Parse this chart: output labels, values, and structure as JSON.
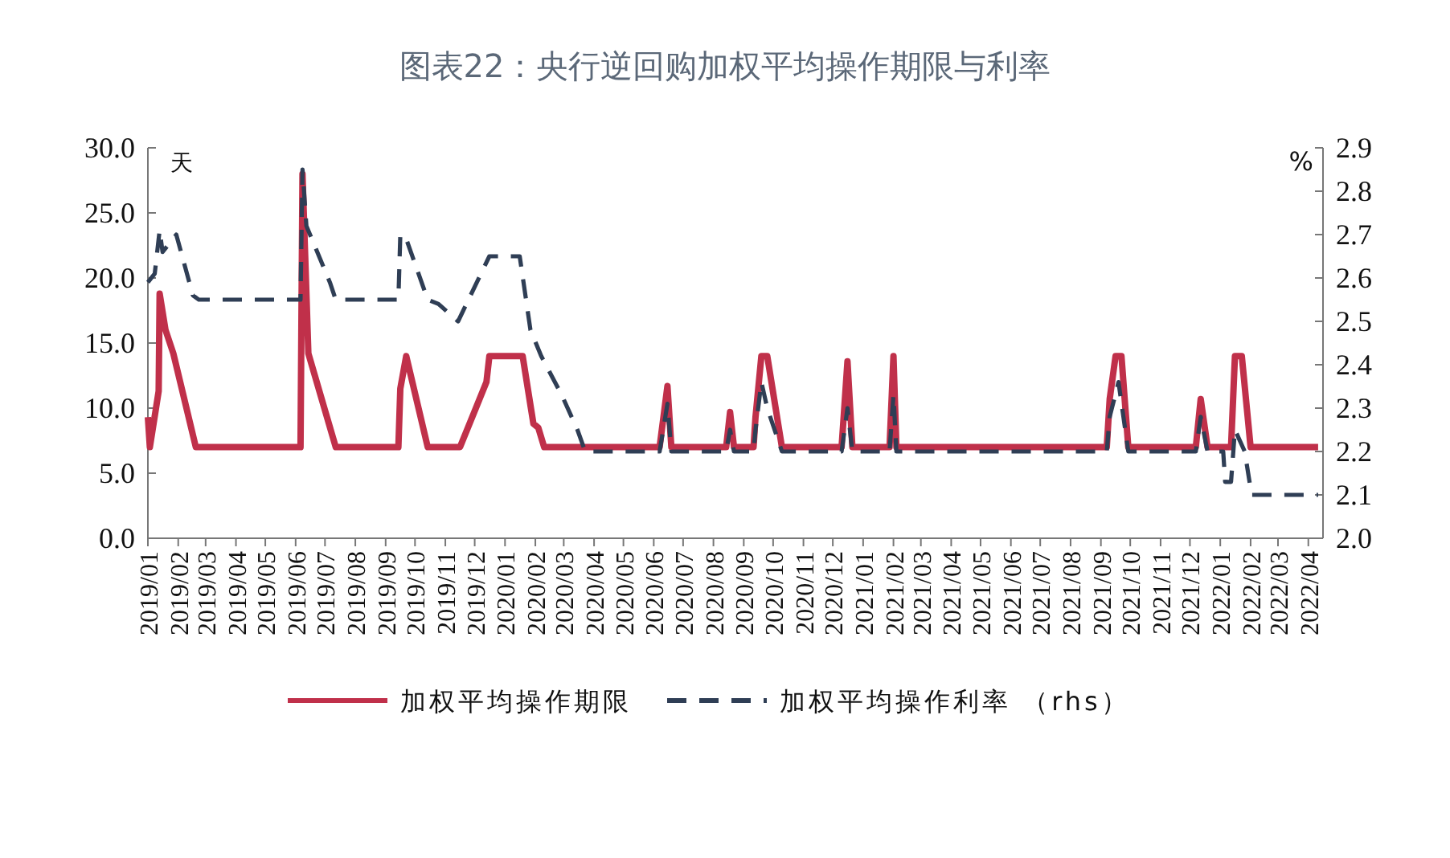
{
  "chart_data": {
    "type": "line",
    "title": "图表22：央行逆回购加权平均操作期限与利率",
    "ylabel": "天",
    "y2label": "%",
    "xlim": [
      "2019-01-01",
      "2022-04-16"
    ],
    "xticks": [
      {
        "value": "2019-01-01",
        "label": "2019/01"
      },
      {
        "value": "2019-02-01",
        "label": "2019/02"
      },
      {
        "value": "2019-03-01",
        "label": "2019/03"
      },
      {
        "value": "2019-04-01",
        "label": "2019/04"
      },
      {
        "value": "2019-05-01",
        "label": "2019/05"
      },
      {
        "value": "2019-06-01",
        "label": "2019/06"
      },
      {
        "value": "2019-07-01",
        "label": "2019/07"
      },
      {
        "value": "2019-08-01",
        "label": "2019/08"
      },
      {
        "value": "2019-09-01",
        "label": "2019/09"
      },
      {
        "value": "2019-10-01",
        "label": "2019/10"
      },
      {
        "value": "2019-11-01",
        "label": "2019/11"
      },
      {
        "value": "2019-12-01",
        "label": "2019/12"
      },
      {
        "value": "2020-01-01",
        "label": "2020/01"
      },
      {
        "value": "2020-02-01",
        "label": "2020/02"
      },
      {
        "value": "2020-03-01",
        "label": "2020/03"
      },
      {
        "value": "2020-04-01",
        "label": "2020/04"
      },
      {
        "value": "2020-05-01",
        "label": "2020/05"
      },
      {
        "value": "2020-06-01",
        "label": "2020/06"
      },
      {
        "value": "2020-07-01",
        "label": "2020/07"
      },
      {
        "value": "2020-08-01",
        "label": "2020/08"
      },
      {
        "value": "2020-09-01",
        "label": "2020/09"
      },
      {
        "value": "2020-10-01",
        "label": "2020/10"
      },
      {
        "value": "2020-11-01",
        "label": "2020/11"
      },
      {
        "value": "2020-12-01",
        "label": "2020/12"
      },
      {
        "value": "2021-01-01",
        "label": "2021/01"
      },
      {
        "value": "2021-02-01",
        "label": "2021/02"
      },
      {
        "value": "2021-03-01",
        "label": "2021/03"
      },
      {
        "value": "2021-04-01",
        "label": "2021/04"
      },
      {
        "value": "2021-05-01",
        "label": "2021/05"
      },
      {
        "value": "2021-06-01",
        "label": "2021/06"
      },
      {
        "value": "2021-07-01",
        "label": "2021/07"
      },
      {
        "value": "2021-08-01",
        "label": "2021/08"
      },
      {
        "value": "2021-09-01",
        "label": "2021/09"
      },
      {
        "value": "2021-10-01",
        "label": "2021/10"
      },
      {
        "value": "2021-11-01",
        "label": "2021/11"
      },
      {
        "value": "2021-12-01",
        "label": "2021/12"
      },
      {
        "value": "2022-01-01",
        "label": "2022/01"
      },
      {
        "value": "2022-02-01",
        "label": "2022/02"
      },
      {
        "value": "2022-03-01",
        "label": "2022/03"
      },
      {
        "value": "2022-04-01",
        "label": "2022/04"
      }
    ],
    "ylim": [
      0,
      30
    ],
    "yticks": [
      {
        "value": 0,
        "label": "0.0"
      },
      {
        "value": 5,
        "label": "5.0"
      },
      {
        "value": 10,
        "label": "10.0"
      },
      {
        "value": 15,
        "label": "15.0"
      },
      {
        "value": 20,
        "label": "20.0"
      },
      {
        "value": 25,
        "label": "25.0"
      },
      {
        "value": 30,
        "label": "30.0"
      }
    ],
    "y2lim": [
      2.0,
      2.9
    ],
    "y2ticks": [
      {
        "value": 2.0,
        "label": "2.0"
      },
      {
        "value": 2.1,
        "label": "2.1"
      },
      {
        "value": 2.2,
        "label": "2.2"
      },
      {
        "value": 2.3,
        "label": "2.3"
      },
      {
        "value": 2.4,
        "label": "2.4"
      },
      {
        "value": 2.5,
        "label": "2.5"
      },
      {
        "value": 2.6,
        "label": "2.6"
      },
      {
        "value": 2.7,
        "label": "2.7"
      },
      {
        "value": 2.8,
        "label": "2.8"
      },
      {
        "value": 2.9,
        "label": "2.9"
      }
    ],
    "legend": "bottom",
    "series": [
      {
        "name": "加权平均操作期限",
        "color": "#c0304a",
        "line_style": "solid",
        "x": [
          "2019-01-01",
          "2019-01-03",
          "2019-01-12",
          "2019-01-13",
          "2019-01-19",
          "2019-01-27",
          "2019-02-19",
          "2019-06-06",
          "2019-06-08",
          "2019-06-14",
          "2019-07-12",
          "2019-09-14",
          "2019-09-16",
          "2019-09-22",
          "2019-10-14",
          "2019-11-16",
          "2019-12-13",
          "2019-12-16",
          "2020-01-19",
          "2020-01-30",
          "2020-02-04",
          "2020-02-10",
          "2020-06-07",
          "2020-06-15",
          "2020-06-19",
          "2020-08-14",
          "2020-08-18",
          "2020-08-22",
          "2020-09-11",
          "2020-09-13",
          "2020-09-19",
          "2020-09-25",
          "2020-10-10",
          "2020-12-10",
          "2020-12-16",
          "2020-12-21",
          "2021-01-28",
          "2021-02-01",
          "2021-02-04",
          "2021-09-07",
          "2021-09-10",
          "2021-09-16",
          "2021-09-22",
          "2021-09-29",
          "2021-12-07",
          "2021-12-12",
          "2021-12-19",
          "2022-01-12",
          "2022-01-16",
          "2022-01-23",
          "2022-02-01",
          "2022-04-11"
        ],
        "values": [
          9.3,
          7.0,
          11.3,
          18.8,
          16.0,
          14.2,
          7.0,
          7.0,
          28.0,
          14.2,
          7.0,
          7.0,
          11.5,
          14.0,
          7.0,
          7.0,
          12.0,
          14.0,
          14.0,
          8.8,
          8.5,
          7.0,
          7.0,
          11.7,
          7.0,
          7.0,
          9.7,
          7.0,
          7.0,
          9.3,
          14.0,
          14.0,
          7.0,
          7.0,
          13.6,
          7.0,
          7.0,
          14.0,
          7.0,
          7.0,
          10.7,
          14.0,
          14.0,
          7.0,
          7.0,
          10.7,
          7.0,
          7.0,
          14.0,
          14.0,
          7.0,
          7.0
        ]
      },
      {
        "name": "加权平均操作利率 （rhs）",
        "color": "#2f3e55",
        "line_style": "dashed",
        "axis": "y2",
        "x": [
          "2019-01-01",
          "2019-01-08",
          "2019-01-13",
          "2019-01-16",
          "2019-01-30",
          "2019-02-16",
          "2019-02-22",
          "2019-06-06",
          "2019-06-08",
          "2019-06-12",
          "2019-07-06",
          "2019-07-12",
          "2019-09-14",
          "2019-09-16",
          "2019-09-22",
          "2019-10-14",
          "2019-10-25",
          "2019-11-14",
          "2019-12-16",
          "2020-01-16",
          "2020-01-27",
          "2020-02-07",
          "2020-02-28",
          "2020-03-15",
          "2020-03-23",
          "2020-06-07",
          "2020-06-15",
          "2020-06-19",
          "2020-08-14",
          "2020-08-18",
          "2020-08-22",
          "2020-09-11",
          "2020-09-13",
          "2020-09-19",
          "2020-09-25",
          "2020-10-10",
          "2020-12-10",
          "2020-12-16",
          "2020-12-21",
          "2021-01-28",
          "2021-02-01",
          "2021-02-04",
          "2021-09-07",
          "2021-09-10",
          "2021-09-19",
          "2021-09-29",
          "2021-12-07",
          "2021-12-12",
          "2021-12-19",
          "2022-01-04",
          "2022-01-06",
          "2022-01-12",
          "2022-01-16",
          "2022-01-26",
          "2022-02-02",
          "2022-04-11"
        ],
        "values": [
          2.59,
          2.61,
          2.71,
          2.66,
          2.7,
          2.56,
          2.55,
          2.55,
          2.85,
          2.72,
          2.59,
          2.55,
          2.55,
          2.7,
          2.69,
          2.55,
          2.54,
          2.5,
          2.65,
          2.65,
          2.48,
          2.42,
          2.33,
          2.25,
          2.2,
          2.2,
          2.31,
          2.2,
          2.2,
          2.25,
          2.2,
          2.2,
          2.25,
          2.36,
          2.3,
          2.2,
          2.2,
          2.3,
          2.2,
          2.2,
          2.33,
          2.2,
          2.2,
          2.28,
          2.36,
          2.2,
          2.2,
          2.28,
          2.2,
          2.2,
          2.13,
          2.13,
          2.25,
          2.2,
          2.1,
          2.1
        ]
      }
    ]
  }
}
